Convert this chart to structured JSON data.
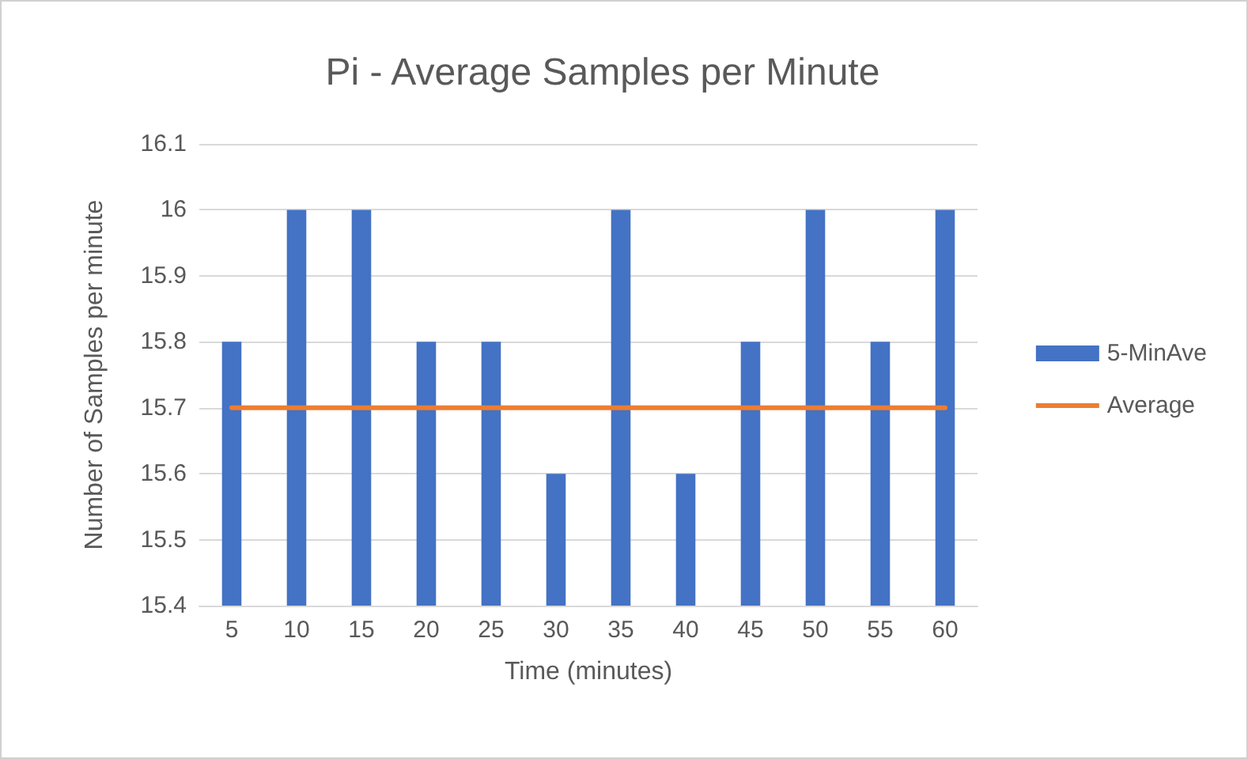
{
  "chart_data": {
    "type": "bar",
    "title": "Pi - Average Samples per Minute",
    "xlabel": "Time (minutes)",
    "ylabel": "Number of Samples per minute",
    "categories": [
      "5",
      "10",
      "15",
      "20",
      "25",
      "30",
      "35",
      "40",
      "45",
      "50",
      "55",
      "60"
    ],
    "series": [
      {
        "name": "5-MinAve",
        "color": "#4472c4",
        "values": [
          15.8,
          16,
          16,
          15.8,
          15.8,
          15.6,
          16,
          15.6,
          15.8,
          16,
          15.8,
          16
        ]
      },
      {
        "name": "Average",
        "type": "line",
        "color": "#ed7d31",
        "values": [
          15.7,
          15.7,
          15.7,
          15.7,
          15.7,
          15.7,
          15.7,
          15.7,
          15.7,
          15.7,
          15.7,
          15.7
        ]
      }
    ],
    "ylim": [
      15.4,
      16.1
    ],
    "yticks": [
      15.4,
      15.5,
      15.6,
      15.7,
      15.8,
      15.9,
      16,
      16.1
    ],
    "grid": "y",
    "legend": "right",
    "marker": "none"
  }
}
